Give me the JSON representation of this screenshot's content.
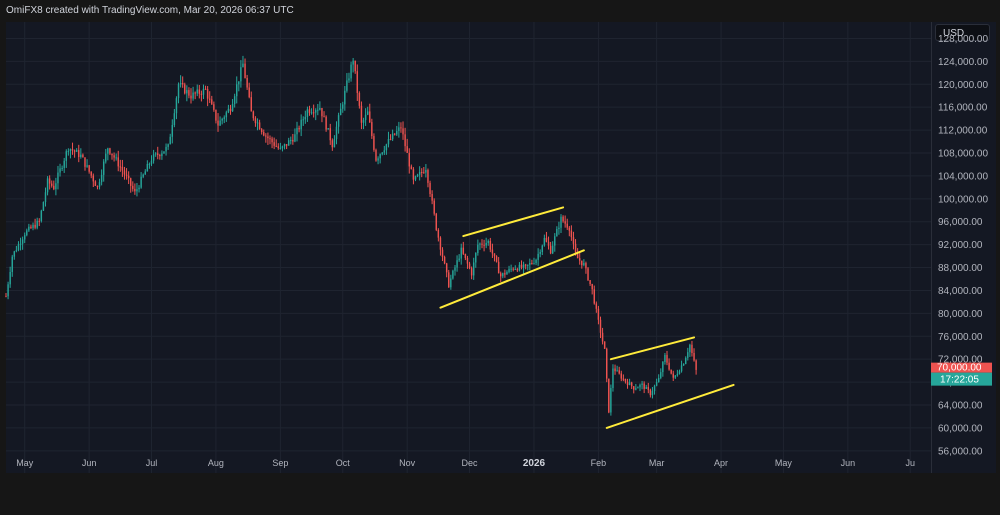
{
  "header": {
    "attribution": "OmiFX8 created with TradingView.com, Mar 20, 2026 06:37 UTC"
  },
  "currency": "USD",
  "colors": {
    "up": "#26a69a",
    "down": "#ef5350",
    "trendline": "#ffeb3b",
    "badge_top": "#ef5350",
    "badge_bottom": "#26a69a"
  },
  "last_price_badge": {
    "price": "70,000.00",
    "countdown": "17:22:05"
  },
  "chart_data": {
    "type": "candlestick",
    "yaxis_ticks": [
      "128,000.00",
      "124,000.00",
      "120,000.00",
      "116,000.00",
      "112,000.00",
      "108,000.00",
      "104,000.00",
      "100,000.00",
      "96,000.00",
      "92,000.00",
      "88,000.00",
      "84,000.00",
      "80,000.00",
      "76,000.00",
      "72,000.00",
      "68,000.00",
      "64,000.00",
      "60,000.00",
      "56,000.00"
    ],
    "xaxis_ticks": [
      {
        "label": "May",
        "bold": false
      },
      {
        "label": "Jun",
        "bold": false
      },
      {
        "label": "Jul",
        "bold": false
      },
      {
        "label": "Aug",
        "bold": false
      },
      {
        "label": "Sep",
        "bold": false
      },
      {
        "label": "Oct",
        "bold": false
      },
      {
        "label": "Nov",
        "bold": false
      },
      {
        "label": "Dec",
        "bold": false
      },
      {
        "label": "2026",
        "bold": true
      },
      {
        "label": "Feb",
        "bold": false
      },
      {
        "label": "Mar",
        "bold": false
      },
      {
        "label": "Apr",
        "bold": false
      },
      {
        "label": "May",
        "bold": false
      },
      {
        "label": "Jun",
        "bold": false
      },
      {
        "label": "Ju",
        "bold": false
      }
    ],
    "ylim": [
      53000,
      130000
    ],
    "time_range": [
      "2025-04-22",
      "2026-07-11"
    ],
    "close_anchors": [
      [
        "2025-04-22",
        83000
      ],
      [
        "2025-04-25",
        90000
      ],
      [
        "2025-05-01",
        94000
      ],
      [
        "2025-05-08",
        96000
      ],
      [
        "2025-05-12",
        103000
      ],
      [
        "2025-05-15",
        102000
      ],
      [
        "2025-05-22",
        109000
      ],
      [
        "2025-05-28",
        107500
      ],
      [
        "2025-06-05",
        102000
      ],
      [
        "2025-06-10",
        109000
      ],
      [
        "2025-06-17",
        105000
      ],
      [
        "2025-06-23",
        101000
      ],
      [
        "2025-07-01",
        107000
      ],
      [
        "2025-07-09",
        109000
      ],
      [
        "2025-07-14",
        120000
      ],
      [
        "2025-07-20",
        118000
      ],
      [
        "2025-07-27",
        119000
      ],
      [
        "2025-08-02",
        113000
      ],
      [
        "2025-08-08",
        116000
      ],
      [
        "2025-08-14",
        123500
      ],
      [
        "2025-08-18",
        115000
      ],
      [
        "2025-08-25",
        111000
      ],
      [
        "2025-09-01",
        108500
      ],
      [
        "2025-09-08",
        111000
      ],
      [
        "2025-09-14",
        115500
      ],
      [
        "2025-09-20",
        116000
      ],
      [
        "2025-09-26",
        109500
      ],
      [
        "2025-10-01",
        117000
      ],
      [
        "2025-10-06",
        124500
      ],
      [
        "2025-10-10",
        113000
      ],
      [
        "2025-10-13",
        115000
      ],
      [
        "2025-10-17",
        107000
      ],
      [
        "2025-10-23",
        110000
      ],
      [
        "2025-10-29",
        112500
      ],
      [
        "2025-11-04",
        103000
      ],
      [
        "2025-11-10",
        105500
      ],
      [
        "2025-11-15",
        95000
      ],
      [
        "2025-11-21",
        85000
      ],
      [
        "2025-11-27",
        91000
      ],
      [
        "2025-12-02",
        87000
      ],
      [
        "2025-12-05",
        92000
      ],
      [
        "2025-12-10",
        92500
      ],
      [
        "2025-12-16",
        86500
      ],
      [
        "2025-12-22",
        88000
      ],
      [
        "2025-12-28",
        88000
      ],
      [
        "2026-01-02",
        89500
      ],
      [
        "2026-01-06",
        93000
      ],
      [
        "2026-01-09",
        91000
      ],
      [
        "2026-01-14",
        96500
      ],
      [
        "2026-01-18",
        95000
      ],
      [
        "2026-01-21",
        90000
      ],
      [
        "2026-01-25",
        88500
      ],
      [
        "2026-01-29",
        84000
      ],
      [
        "2026-02-01",
        78500
      ],
      [
        "2026-02-04",
        73500
      ],
      [
        "2026-02-06",
        63000
      ],
      [
        "2026-02-08",
        70500
      ],
      [
        "2026-02-13",
        68500
      ],
      [
        "2026-02-18",
        67000
      ],
      [
        "2026-02-22",
        67500
      ],
      [
        "2026-02-26",
        66000
      ],
      [
        "2026-03-02",
        68500
      ],
      [
        "2026-03-05",
        72500
      ],
      [
        "2026-03-09",
        68500
      ],
      [
        "2026-03-14",
        71500
      ],
      [
        "2026-03-17",
        74500
      ],
      [
        "2026-03-20",
        70000
      ]
    ],
    "trendlines": [
      {
        "name": "dec-channel-upper",
        "from": [
          "2025-11-28",
          93500
        ],
        "to": [
          "2026-01-15",
          98500
        ]
      },
      {
        "name": "dec-channel-lower",
        "from": [
          "2025-11-17",
          81000
        ],
        "to": [
          "2026-01-25",
          91000
        ]
      },
      {
        "name": "feb-channel-upper",
        "from": [
          "2026-02-07",
          72000
        ],
        "to": [
          "2026-03-19",
          75800
        ]
      },
      {
        "name": "feb-channel-lower",
        "from": [
          "2026-02-05",
          60000
        ],
        "to": [
          "2026-04-07",
          67500
        ]
      }
    ]
  }
}
